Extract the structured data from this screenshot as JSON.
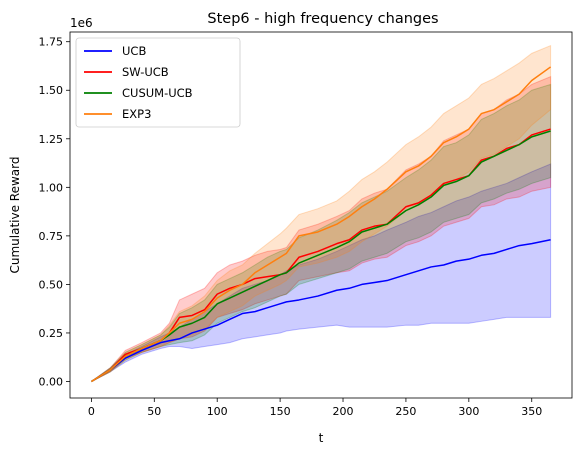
{
  "chart_data": {
    "type": "line",
    "title": "Step6 - high frequency changes",
    "xlabel": "t",
    "ylabel": "Cumulative Reward",
    "y_offset_label": "1e6",
    "xlim": [
      -17,
      382
    ],
    "ylim": [
      -0.085,
      1.8
    ],
    "xticks": [
      0,
      50,
      100,
      150,
      200,
      250,
      300,
      350
    ],
    "xtick_labels": [
      "0",
      "50",
      "100",
      "150",
      "200",
      "250",
      "300",
      "350"
    ],
    "yticks": [
      0,
      0.25,
      0.5,
      0.75,
      1.0,
      1.25,
      1.5,
      1.75
    ],
    "ytick_labels": [
      "0.00",
      "0.25",
      "0.50",
      "0.75",
      "1.00",
      "1.25",
      "1.50",
      "1.75"
    ],
    "legend_position": "top-left",
    "grid": false,
    "x": [
      0,
      15,
      27,
      40,
      55,
      62,
      70,
      80,
      90,
      100,
      110,
      120,
      130,
      140,
      150,
      155,
      165,
      180,
      195,
      205,
      215,
      225,
      235,
      250,
      260,
      270,
      280,
      290,
      300,
      310,
      320,
      330,
      340,
      350,
      365
    ],
    "series": [
      {
        "name": "UCB",
        "color": "#0000ff",
        "band_opacity": 0.2,
        "mean": [
          0.0,
          0.06,
          0.12,
          0.16,
          0.2,
          0.21,
          0.22,
          0.25,
          0.27,
          0.29,
          0.32,
          0.35,
          0.36,
          0.38,
          0.4,
          0.41,
          0.42,
          0.44,
          0.47,
          0.48,
          0.5,
          0.51,
          0.52,
          0.55,
          0.57,
          0.59,
          0.6,
          0.62,
          0.63,
          0.65,
          0.66,
          0.68,
          0.7,
          0.71,
          0.73
        ],
        "lower": [
          0.0,
          0.05,
          0.1,
          0.14,
          0.17,
          0.18,
          0.18,
          0.17,
          0.18,
          0.19,
          0.2,
          0.22,
          0.23,
          0.24,
          0.25,
          0.26,
          0.27,
          0.28,
          0.29,
          0.28,
          0.28,
          0.28,
          0.28,
          0.29,
          0.29,
          0.3,
          0.3,
          0.3,
          0.3,
          0.31,
          0.32,
          0.33,
          0.33,
          0.33,
          0.33
        ],
        "upper": [
          0.0,
          0.07,
          0.14,
          0.18,
          0.23,
          0.25,
          0.28,
          0.32,
          0.36,
          0.4,
          0.44,
          0.48,
          0.5,
          0.52,
          0.55,
          0.57,
          0.6,
          0.63,
          0.67,
          0.7,
          0.73,
          0.75,
          0.78,
          0.82,
          0.85,
          0.87,
          0.9,
          0.93,
          0.95,
          0.98,
          1.0,
          1.02,
          1.05,
          1.08,
          1.12
        ]
      },
      {
        "name": "SW-UCB",
        "color": "#ff0000",
        "band_opacity": 0.2,
        "mean": [
          0.0,
          0.06,
          0.14,
          0.17,
          0.21,
          0.25,
          0.33,
          0.34,
          0.37,
          0.45,
          0.48,
          0.5,
          0.53,
          0.54,
          0.55,
          0.56,
          0.64,
          0.67,
          0.71,
          0.73,
          0.78,
          0.8,
          0.81,
          0.9,
          0.92,
          0.96,
          1.02,
          1.04,
          1.06,
          1.14,
          1.16,
          1.2,
          1.22,
          1.27,
          1.3
        ],
        "lower": [
          0.0,
          0.05,
          0.12,
          0.15,
          0.18,
          0.2,
          0.22,
          0.23,
          0.26,
          0.33,
          0.35,
          0.37,
          0.4,
          0.42,
          0.44,
          0.45,
          0.52,
          0.54,
          0.56,
          0.57,
          0.61,
          0.63,
          0.64,
          0.7,
          0.72,
          0.75,
          0.8,
          0.82,
          0.84,
          0.9,
          0.91,
          0.94,
          0.95,
          0.98,
          1.0
        ],
        "upper": [
          0.0,
          0.07,
          0.16,
          0.2,
          0.25,
          0.3,
          0.42,
          0.45,
          0.48,
          0.56,
          0.6,
          0.62,
          0.65,
          0.67,
          0.68,
          0.69,
          0.78,
          0.81,
          0.85,
          0.88,
          0.94,
          0.97,
          0.99,
          1.09,
          1.12,
          1.16,
          1.24,
          1.27,
          1.3,
          1.38,
          1.4,
          1.45,
          1.48,
          1.53,
          1.57
        ]
      },
      {
        "name": "CUSUM-UCB",
        "color": "#008000",
        "band_opacity": 0.2,
        "mean": [
          0.0,
          0.06,
          0.13,
          0.17,
          0.21,
          0.24,
          0.28,
          0.3,
          0.33,
          0.4,
          0.43,
          0.46,
          0.49,
          0.52,
          0.55,
          0.56,
          0.61,
          0.65,
          0.69,
          0.72,
          0.77,
          0.79,
          0.81,
          0.88,
          0.91,
          0.95,
          1.01,
          1.03,
          1.06,
          1.13,
          1.16,
          1.19,
          1.22,
          1.26,
          1.29
        ],
        "lower": [
          0.0,
          0.05,
          0.11,
          0.15,
          0.18,
          0.19,
          0.2,
          0.21,
          0.24,
          0.3,
          0.33,
          0.36,
          0.38,
          0.41,
          0.44,
          0.45,
          0.5,
          0.53,
          0.56,
          0.58,
          0.62,
          0.64,
          0.66,
          0.72,
          0.74,
          0.77,
          0.82,
          0.84,
          0.86,
          0.92,
          0.94,
          0.97,
          0.99,
          1.02,
          1.05
        ],
        "upper": [
          0.0,
          0.07,
          0.15,
          0.19,
          0.24,
          0.28,
          0.35,
          0.38,
          0.42,
          0.5,
          0.53,
          0.56,
          0.6,
          0.64,
          0.67,
          0.68,
          0.74,
          0.78,
          0.83,
          0.87,
          0.92,
          0.95,
          0.98,
          1.05,
          1.09,
          1.14,
          1.21,
          1.23,
          1.27,
          1.35,
          1.38,
          1.42,
          1.45,
          1.5,
          1.53
        ]
      },
      {
        "name": "EXP3",
        "color": "#ff7f0e",
        "band_opacity": 0.2,
        "mean": [
          0.0,
          0.06,
          0.13,
          0.17,
          0.21,
          0.25,
          0.3,
          0.32,
          0.36,
          0.43,
          0.47,
          0.5,
          0.56,
          0.6,
          0.64,
          0.66,
          0.75,
          0.77,
          0.81,
          0.85,
          0.9,
          0.94,
          0.99,
          1.08,
          1.11,
          1.16,
          1.23,
          1.26,
          1.3,
          1.38,
          1.4,
          1.44,
          1.48,
          1.55,
          1.62
        ],
        "lower": [
          0.0,
          0.05,
          0.11,
          0.15,
          0.18,
          0.2,
          0.22,
          0.24,
          0.27,
          0.33,
          0.36,
          0.39,
          0.44,
          0.47,
          0.5,
          0.52,
          0.59,
          0.61,
          0.64,
          0.67,
          0.72,
          0.76,
          0.8,
          0.88,
          0.91,
          0.95,
          1.01,
          1.04,
          1.08,
          1.15,
          1.17,
          1.21,
          1.25,
          1.32,
          1.4
        ],
        "upper": [
          0.0,
          0.07,
          0.15,
          0.19,
          0.24,
          0.29,
          0.36,
          0.39,
          0.44,
          0.52,
          0.57,
          0.6,
          0.66,
          0.71,
          0.76,
          0.79,
          0.86,
          0.89,
          0.93,
          0.98,
          1.04,
          1.08,
          1.13,
          1.22,
          1.26,
          1.31,
          1.38,
          1.42,
          1.46,
          1.53,
          1.56,
          1.6,
          1.64,
          1.69,
          1.73
        ]
      }
    ]
  }
}
